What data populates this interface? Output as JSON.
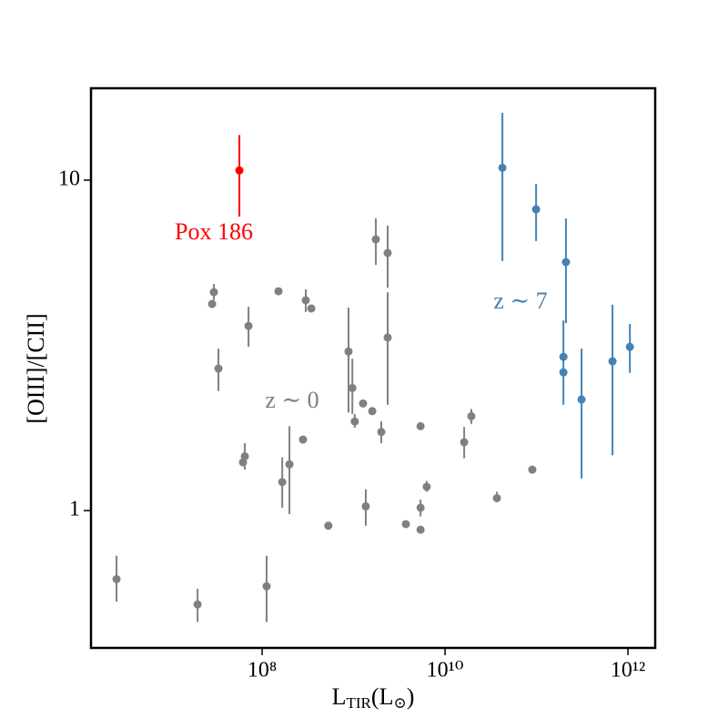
{
  "chart_data": {
    "type": "scatter",
    "xlabel": [
      "L",
      "TIR",
      "(L",
      "⊙",
      ")"
    ],
    "ylabel": "[OIII]/[CII]",
    "xscale": "log",
    "yscale": "log",
    "xlim": [
      1346000,
      1986000000000
    ],
    "ylim": [
      0.384,
      18.97
    ],
    "xticks": [
      {
        "value": 100000000,
        "label": "10⁸"
      },
      {
        "value": 10000000000,
        "label": "10¹⁰"
      },
      {
        "value": 1000000000000,
        "label": "10¹²"
      }
    ],
    "yticks": [
      1,
      10
    ],
    "series": [
      {
        "name": "z ∼ 0",
        "color": "#808080",
        "x": [
          2560000,
          19700000,
          112000000,
          28400000,
          29700000,
          33300000,
          71000000,
          61800000,
          64700000,
          151000000,
          166000000,
          199000000,
          280000000,
          300000000,
          345000000,
          530000000,
          880000000,
          970000000,
          1030000000,
          1270000000,
          1600000000,
          1360000000,
          1750000000,
          2360000000,
          2360000000,
          2010000000,
          3730000000,
          5400000000,
          5400000000,
          5400000000,
          6300000000,
          16200000000,
          19400000000,
          36900000000,
          90000000000
        ],
        "values": [
          0.62,
          0.52,
          0.59,
          4.22,
          4.58,
          2.69,
          3.62,
          1.4,
          1.46,
          4.61,
          1.22,
          1.38,
          1.64,
          4.33,
          4.09,
          0.9,
          3.03,
          2.35,
          1.86,
          2.11,
          2.0,
          1.03,
          6.62,
          6.02,
          3.34,
          1.73,
          0.91,
          1.8,
          1.02,
          0.875,
          1.18,
          1.61,
          1.93,
          1.09,
          1.33
        ],
        "ylower": [
          0.53,
          0.46,
          0.46,
          null,
          4.33,
          2.3,
          3.13,
          null,
          1.33,
          null,
          1.02,
          0.975,
          null,
          3.99,
          null,
          null,
          1.98,
          1.96,
          1.78,
          null,
          null,
          0.9,
          5.54,
          4.73,
          2.09,
          1.6,
          null,
          null,
          0.96,
          null,
          1.14,
          1.44,
          1.83,
          1.06,
          null
        ],
        "yupper": [
          0.73,
          0.58,
          0.73,
          null,
          4.85,
          3.09,
          4.14,
          null,
          1.6,
          null,
          1.45,
          1.8,
          null,
          4.67,
          null,
          null,
          4.11,
          2.88,
          1.96,
          null,
          null,
          1.16,
          7.66,
          7.28,
          4.58,
          1.86,
          null,
          null,
          1.08,
          null,
          1.23,
          1.79,
          2.03,
          1.14,
          null
        ]
      },
      {
        "name": "Pox 186",
        "color": "#ff0000",
        "x": [
          56400000
        ],
        "values": [
          10.7
        ],
        "ylower": [
          7.76
        ],
        "yupper": [
          13.7
        ]
      },
      {
        "name": "z ∼ 7",
        "color": "#4682b4",
        "x": [
          42400000000,
          99000000000,
          210000000000,
          197000000000,
          197000000000,
          311000000000,
          678000000000,
          1050000000000
        ],
        "values": [
          10.9,
          8.16,
          5.65,
          2.92,
          2.62,
          2.17,
          2.83,
          3.13
        ],
        "ylower": [
          5.69,
          6.54,
          3.69,
          2.09,
          null,
          1.25,
          1.47,
          2.61
        ],
        "yupper": [
          16.0,
          9.75,
          7.66,
          3.76,
          null,
          3.09,
          4.2,
          3.67
        ]
      }
    ]
  }
}
